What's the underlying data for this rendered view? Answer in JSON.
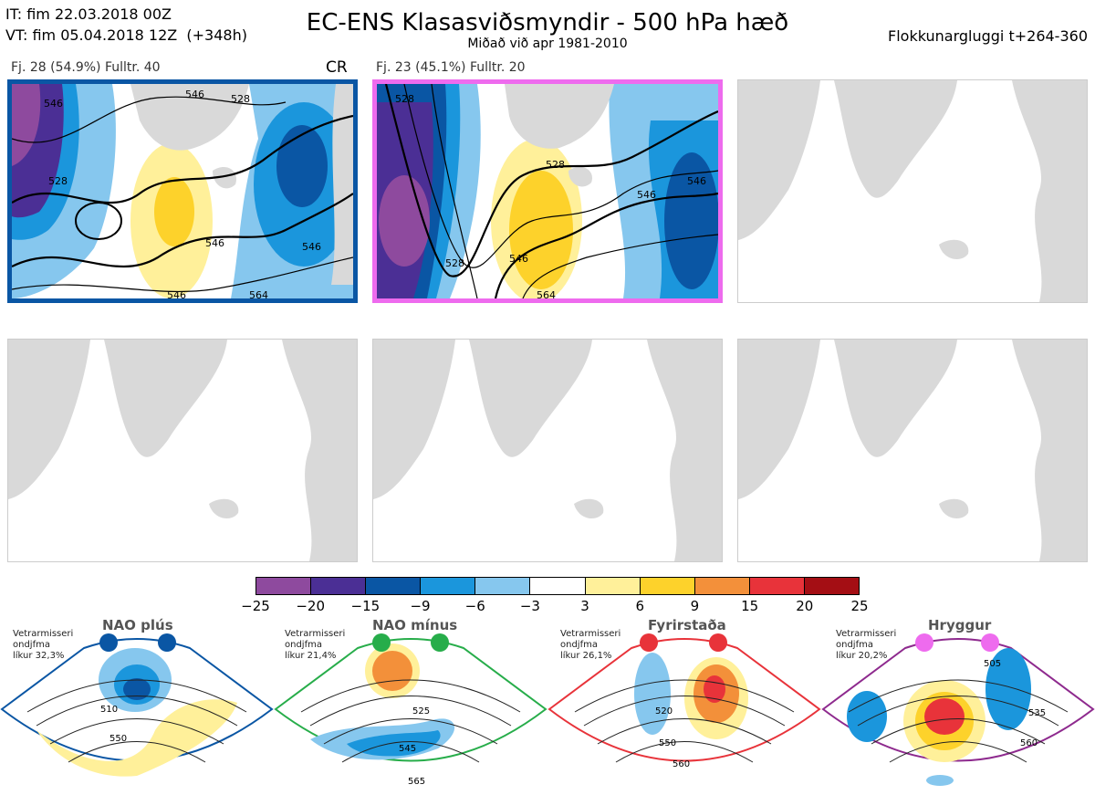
{
  "header": {
    "it": "IT: fim 22.03.2018 00Z",
    "vt": "VT: fim 05.04.2018 12Z  (+348h)",
    "title": "EC-ENS Klasasviðsmyndir - 500 hPa hæð",
    "subtitle": "Miðað við apr 1981-2010",
    "window": "Flokkunargluggi t+264-360"
  },
  "clusters": [
    {
      "caption": "Fj. 28 (54.9%)   Fulltr. 40",
      "label": "CR",
      "border": "#0a56a4",
      "contours": [
        "528",
        "546",
        "546",
        "528",
        "546",
        "546",
        "564",
        "546"
      ]
    },
    {
      "caption": "Fj. 23 (45.1%)   Fulltr. 20",
      "label": "",
      "border": "#ee6bee",
      "contours": [
        "528",
        "528",
        "546",
        "546",
        "564",
        "546",
        "528"
      ]
    }
  ],
  "colorbar": {
    "colors": [
      "#8e4a9e",
      "#4b2f95",
      "#0a56a4",
      "#1b96dc",
      "#86c7ee",
      "#ffffff",
      "#fff09a",
      "#fdd22b",
      "#f3903a",
      "#e8333a",
      "#a40e14"
    ],
    "labels": [
      "−25",
      "−20",
      "−15",
      "−9",
      "−6",
      "−3",
      "3",
      "6",
      "9",
      "15",
      "20",
      "25"
    ]
  },
  "regimes": [
    {
      "title": "NAO plús",
      "note": [
        "Vetrarmisseri",
        "ondjfma",
        "líkur 32,3%"
      ],
      "color": "#0a56a4",
      "contours": [
        "510",
        "550"
      ]
    },
    {
      "title": "NAO mínus",
      "note": [
        "Vetrarmisseri",
        "ondjfma",
        "líkur 21,4%"
      ],
      "color": "#27ad4a",
      "contours": [
        "525",
        "545",
        "565"
      ]
    },
    {
      "title": "Fyrirstaða",
      "note": [
        "Vetrarmisseri",
        "ondjfma",
        "líkur 26,1%"
      ],
      "color": "#e8333a",
      "contours": [
        "520",
        "550",
        "560"
      ]
    },
    {
      "title": "Hryggur",
      "note": [
        "Vetrarmisseri",
        "ondjfma",
        "líkur 20,2%"
      ],
      "color": "#ee6bee",
      "contours": [
        "505",
        "535",
        "560"
      ]
    }
  ]
}
